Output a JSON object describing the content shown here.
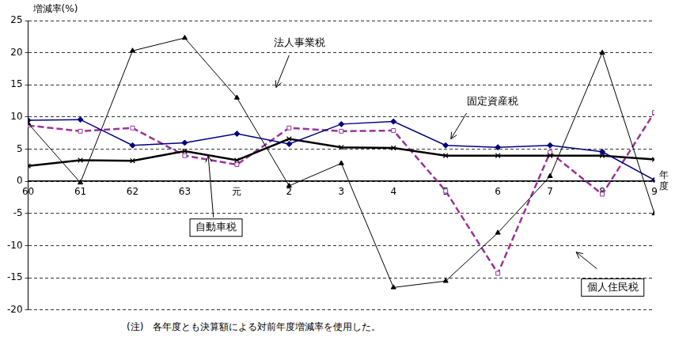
{
  "chart_data": {
    "type": "line",
    "y_label": "増減率(%)",
    "x_label": "年度",
    "note": "(注)　各年度とも決算額による対前年度増減率を使用した。",
    "categories": [
      "60",
      "61",
      "62",
      "63",
      "元",
      "2",
      "3",
      "4",
      "5",
      "6",
      "7",
      "8",
      "9"
    ],
    "series": [
      {
        "name": "法人事業税",
        "color": "#000000",
        "marker": "triangle",
        "line_style": "solid",
        "values": [
          9.0,
          -0.2,
          20.3,
          22.3,
          13.0,
          -0.7,
          2.8,
          -16.5,
          -15.5,
          -8.0,
          0.8,
          20.0,
          -5.0
        ]
      },
      {
        "name": "固定資産税",
        "color": "#000080",
        "marker": "diamond",
        "line_style": "solid",
        "values": [
          9.5,
          9.6,
          5.6,
          6.0,
          7.4,
          5.8,
          8.9,
          9.3,
          5.6,
          5.3,
          5.6,
          4.6,
          0.2
        ]
      },
      {
        "name": "自動車税",
        "color": "#000000",
        "marker": "x",
        "line_style": "solid",
        "values": [
          2.4,
          3.3,
          3.2,
          4.7,
          3.3,
          6.6,
          5.3,
          5.2,
          4.0,
          4.0,
          4.0,
          4.0,
          3.4
        ]
      },
      {
        "name": "個人住民税",
        "color": "#993399",
        "marker": "square",
        "line_style": "dashed",
        "values": [
          8.7,
          7.8,
          8.3,
          4.0,
          2.6,
          8.3,
          7.8,
          7.9,
          -1.5,
          -14.3,
          4.5,
          -2.0,
          10.7
        ]
      }
    ],
    "ylim": [
      -20,
      25
    ],
    "yticks": [
      -20,
      -15,
      -10,
      -5,
      0,
      5,
      10,
      15,
      20,
      25
    ],
    "grid": true
  }
}
